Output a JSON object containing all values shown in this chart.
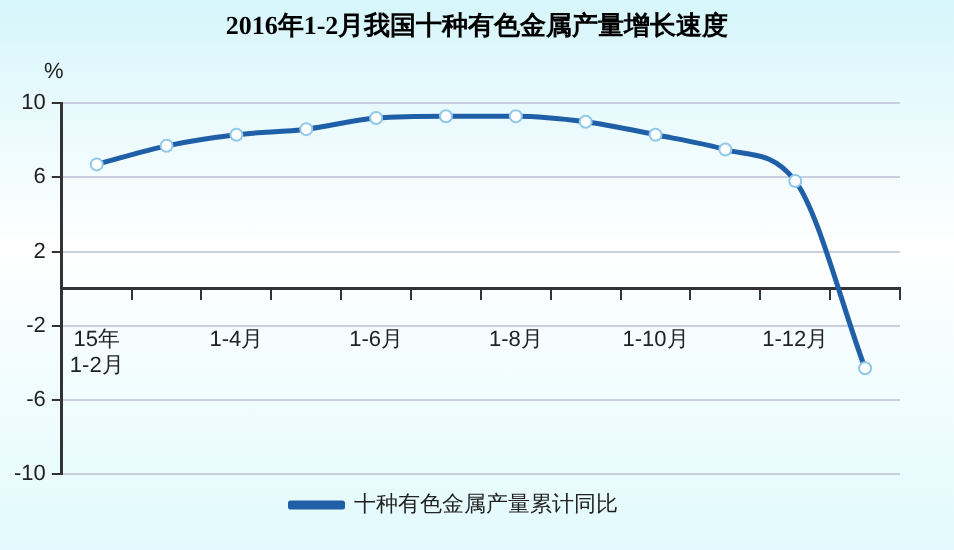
{
  "chart_data": {
    "type": "line",
    "title": "2016年1-2月我国十种有色金属产量增长速度",
    "ylabel": "%",
    "categories": [
      "15年1-2月",
      null,
      "1-4月",
      null,
      "1-6月",
      null,
      "1-8月",
      null,
      "1-10月",
      null,
      "1-12月",
      null
    ],
    "series": [
      {
        "name": "十种有色金属产量累计同比",
        "color": "#1f5fa8",
        "values": [
          6.7,
          7.7,
          8.3,
          8.6,
          9.2,
          9.3,
          9.3,
          9.0,
          8.3,
          7.5,
          5.8,
          -4.3
        ]
      }
    ],
    "ylim": [
      -10,
      10
    ],
    "yticks": [
      -10,
      -6,
      -2,
      2,
      6,
      10
    ],
    "grid": "y",
    "legend": "bottom",
    "marker": "circle",
    "line_style": "solid"
  }
}
